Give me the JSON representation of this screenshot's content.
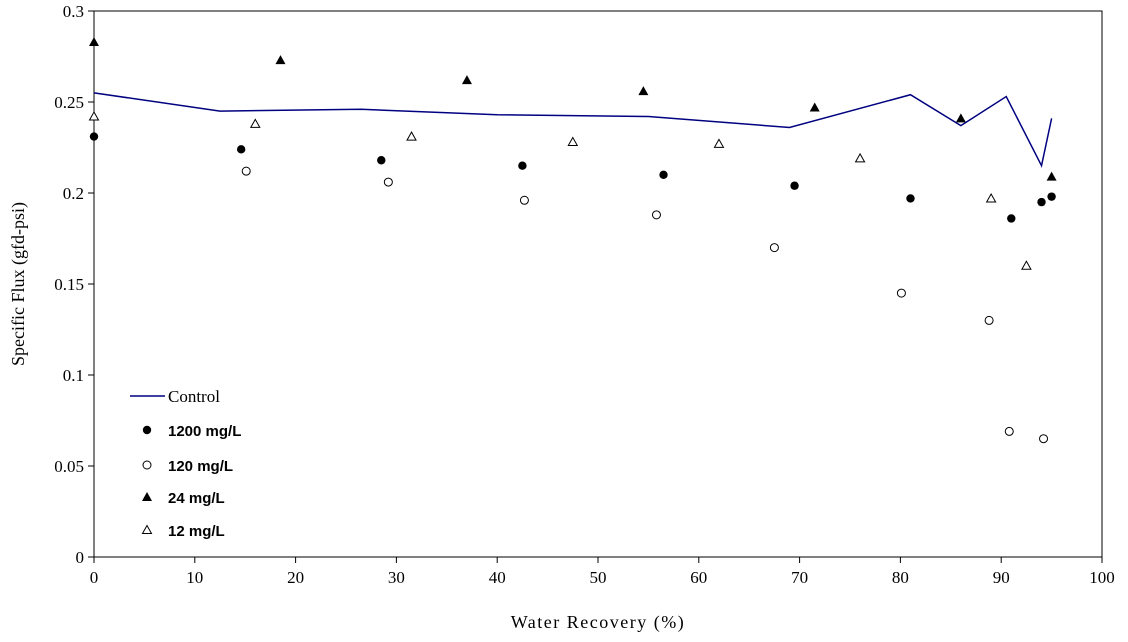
{
  "chart_data": {
    "type": "scatter",
    "xlabel": "Water Recovery (%)",
    "ylabel": "Specific Flux (gfd-psi)",
    "xlim": [
      0,
      100
    ],
    "ylim": [
      0,
      0.3
    ],
    "xticks": [
      0,
      10,
      20,
      30,
      40,
      50,
      60,
      70,
      80,
      90,
      100
    ],
    "yticks": [
      0,
      0.05,
      0.1,
      0.15,
      0.2,
      0.25,
      0.3
    ],
    "xtick_labels": [
      "0",
      "10",
      "20",
      "30",
      "40",
      "50",
      "60",
      "70",
      "80",
      "90",
      "100"
    ],
    "ytick_labels": [
      "0",
      "0.05",
      "0.1",
      "0.15",
      "0.2",
      "0.25",
      "0.3"
    ],
    "grid": false,
    "legend_position": "bottom-left",
    "series": [
      {
        "name": "Control",
        "kind": "line",
        "color": "#000080",
        "x": [
          0,
          12.5,
          26.5,
          40,
          55,
          69,
          81,
          86,
          90.5,
          94,
          95
        ],
        "y": [
          0.255,
          0.245,
          0.246,
          0.243,
          0.242,
          0.236,
          0.254,
          0.237,
          0.253,
          0.215,
          0.241
        ]
      },
      {
        "name": "1200 mg/L",
        "kind": "marker",
        "marker": "filled-circle",
        "x": [
          0,
          14.6,
          28.5,
          42.5,
          56.5,
          69.5,
          81,
          91,
          94,
          95
        ],
        "y": [
          0.231,
          0.224,
          0.218,
          0.215,
          0.21,
          0.204,
          0.197,
          0.186,
          0.195,
          0.198
        ]
      },
      {
        "name": "120 mg/L",
        "kind": "marker",
        "marker": "open-circle",
        "x": [
          15.1,
          29.2,
          42.7,
          55.8,
          67.5,
          80.1,
          88.8,
          90.8,
          94.2
        ],
        "y": [
          0.212,
          0.206,
          0.196,
          0.188,
          0.17,
          0.145,
          0.13,
          0.069,
          0.065
        ]
      },
      {
        "name": "24 mg/L",
        "kind": "marker",
        "marker": "filled-triangle",
        "x": [
          0,
          18.5,
          37,
          54.5,
          71.5,
          86,
          95
        ],
        "y": [
          0.283,
          0.273,
          0.262,
          0.256,
          0.247,
          0.241,
          0.209
        ]
      },
      {
        "name": "12 mg/L",
        "kind": "marker",
        "marker": "open-triangle",
        "x": [
          0,
          16,
          31.5,
          47.5,
          62,
          76,
          89,
          92.5
        ],
        "y": [
          0.242,
          0.238,
          0.231,
          0.228,
          0.227,
          0.219,
          0.197,
          0.16
        ]
      }
    ]
  }
}
